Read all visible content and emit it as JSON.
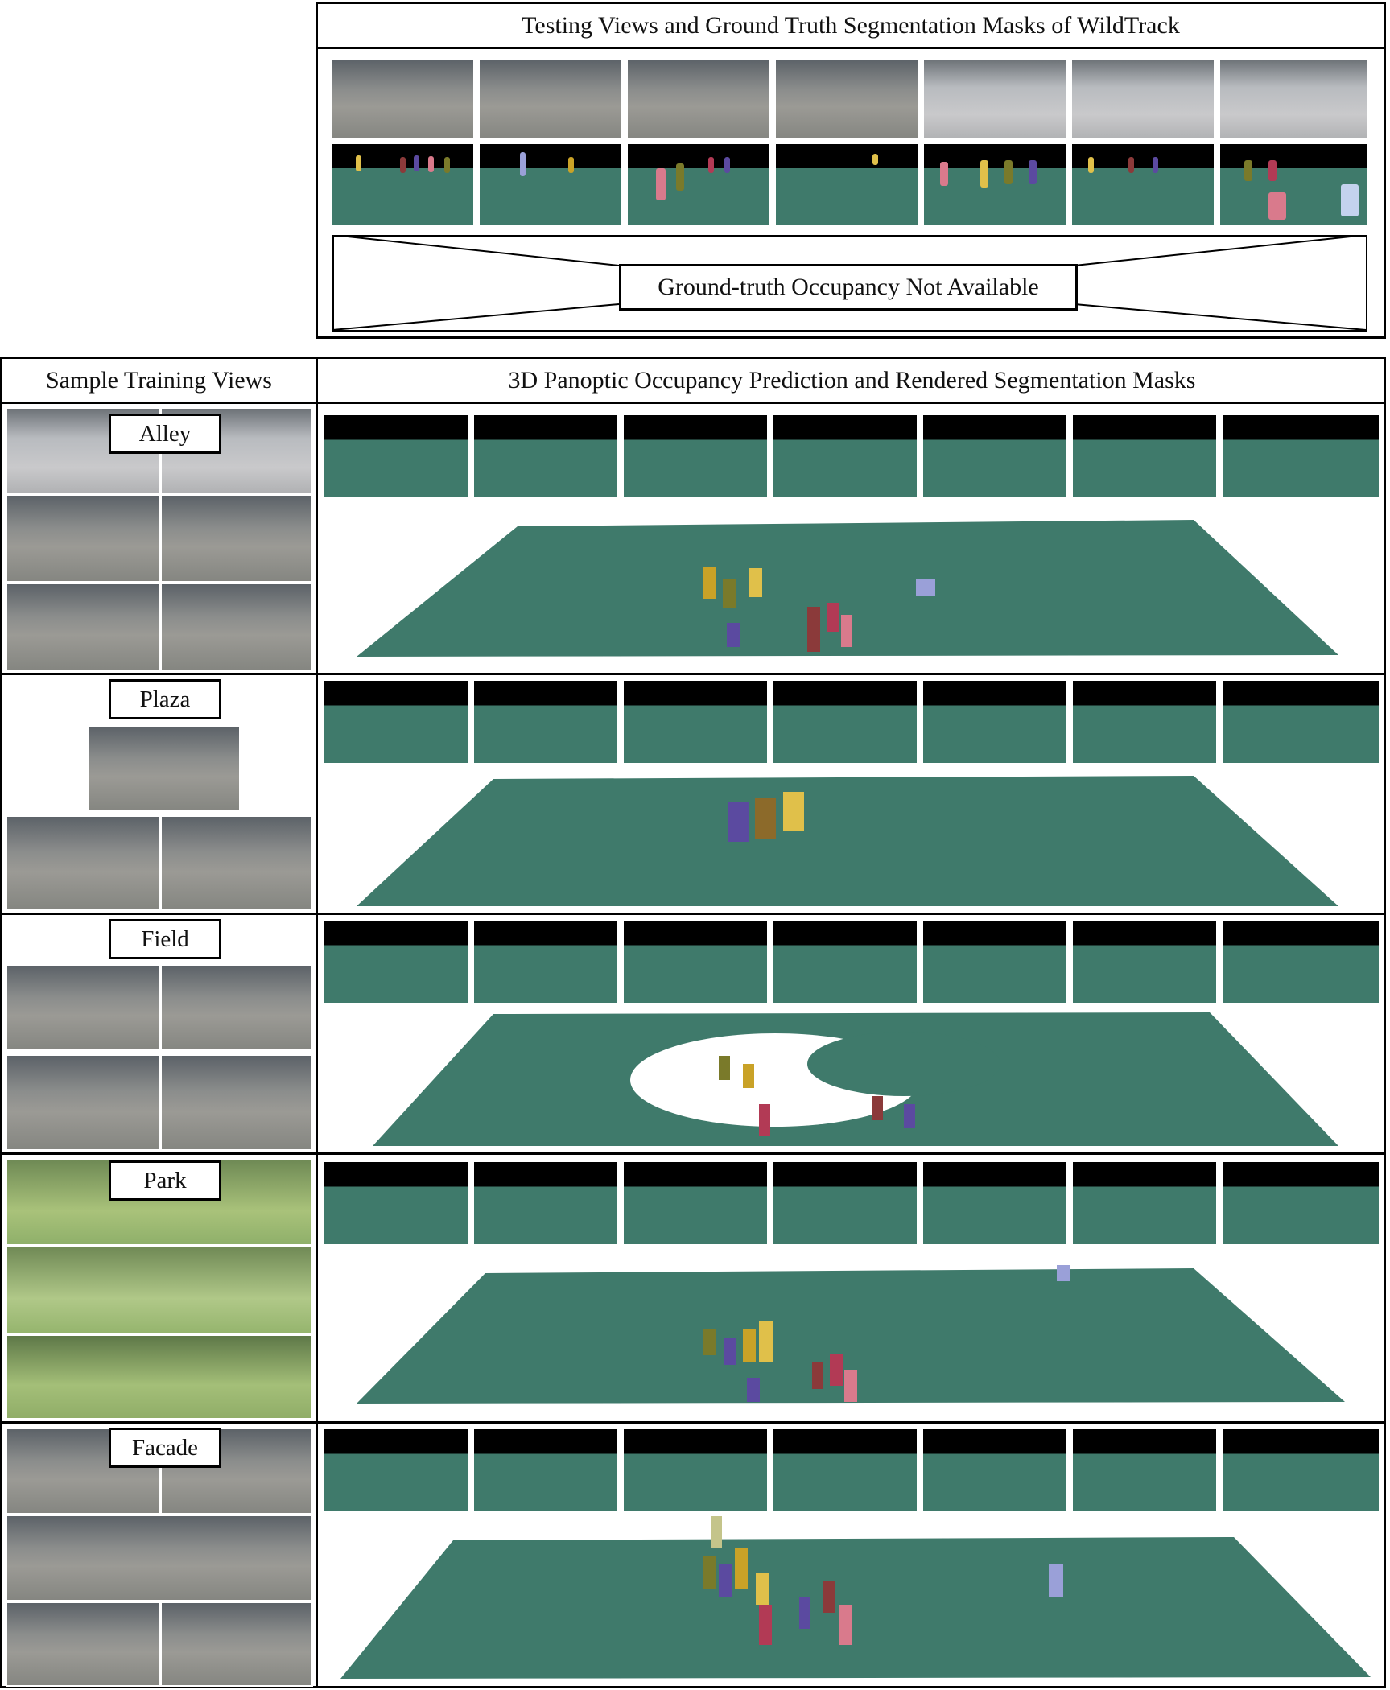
{
  "top_panel": {
    "title": "Testing Views and Ground Truth Segmentation Masks of WildTrack",
    "notice": "Ground-truth Occupancy Not Available"
  },
  "left_column": {
    "header": "Sample Training Views"
  },
  "right_column": {
    "header": "3D Panoptic Occupancy Prediction and Rendered Segmentation Masks"
  },
  "rows": [
    {
      "label": "Alley"
    },
    {
      "label": "Plaza"
    },
    {
      "label": "Field"
    },
    {
      "label": "Park"
    },
    {
      "label": "Facade"
    }
  ],
  "colors": {
    "ground": "#3f7a6b",
    "background_mask": "#000000",
    "instance_palette": [
      "#c9a227",
      "#8b3a3a",
      "#5b4aa0",
      "#d97a8c",
      "#9aa0d8",
      "#7a7a2a",
      "#b23a55",
      "#e0c04a"
    ]
  }
}
